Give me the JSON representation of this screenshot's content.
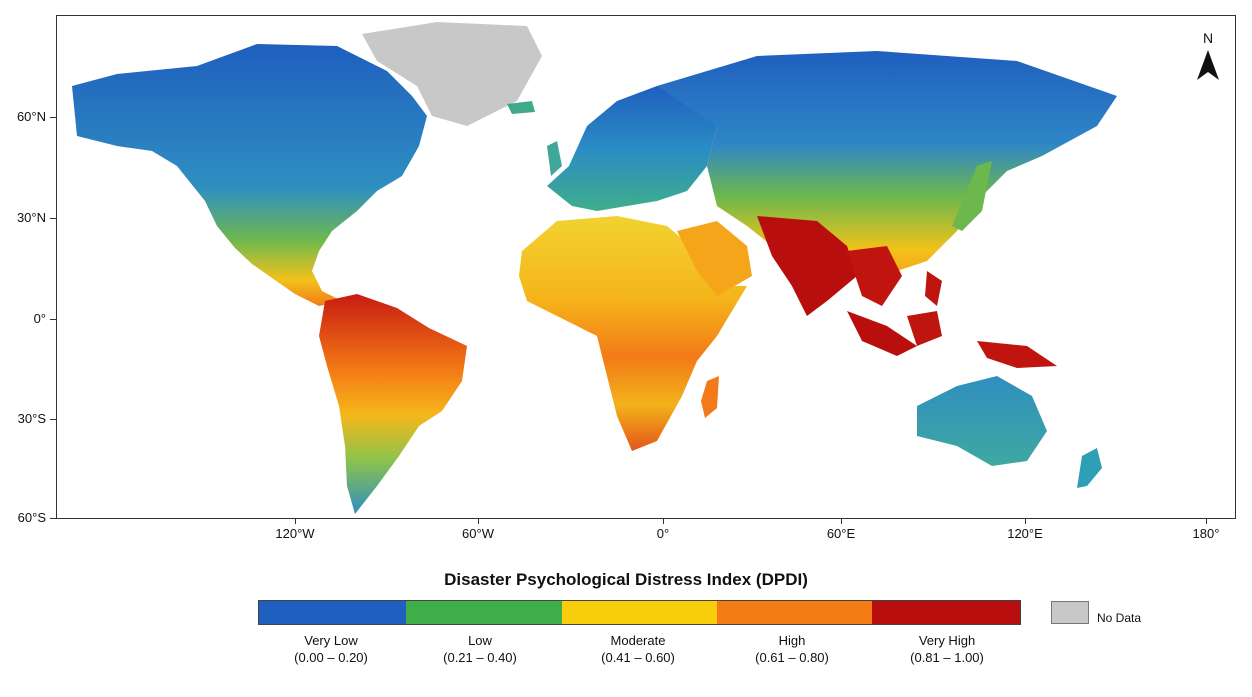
{
  "map": {
    "lat_ticks": [
      {
        "label": "60°N"
      },
      {
        "label": "30°N"
      },
      {
        "label": "0°"
      },
      {
        "label": "30°S"
      },
      {
        "label": "60°S"
      }
    ],
    "lon_ticks": [
      {
        "label": "120°W"
      },
      {
        "label": "60°W"
      },
      {
        "label": "0°"
      },
      {
        "label": "60°E"
      },
      {
        "label": "120°E"
      },
      {
        "label": "180°"
      }
    ],
    "north_arrow": {
      "letter": "N",
      "icon": "north-arrow-icon"
    }
  },
  "legend": {
    "title": "Disaster Psychological Distress Index (DPDI)",
    "classes": [
      {
        "name": "Very Low",
        "range": "(0.00 – 0.20)",
        "color": "#1f5fbf"
      },
      {
        "name": "Low",
        "range": "(0.21 – 0.40)",
        "color": "#3fae49"
      },
      {
        "name": "Moderate",
        "range": "(0.41 – 0.60)",
        "color": "#f7cd0c"
      },
      {
        "name": "High",
        "range": "(0.61 – 0.80)",
        "color": "#f47b16"
      },
      {
        "name": "Very High",
        "range": "(0.81 – 1.00)",
        "color": "#b80e0e"
      }
    ],
    "no_data": {
      "label": "No Data",
      "color": "#c8c8c8"
    }
  }
}
